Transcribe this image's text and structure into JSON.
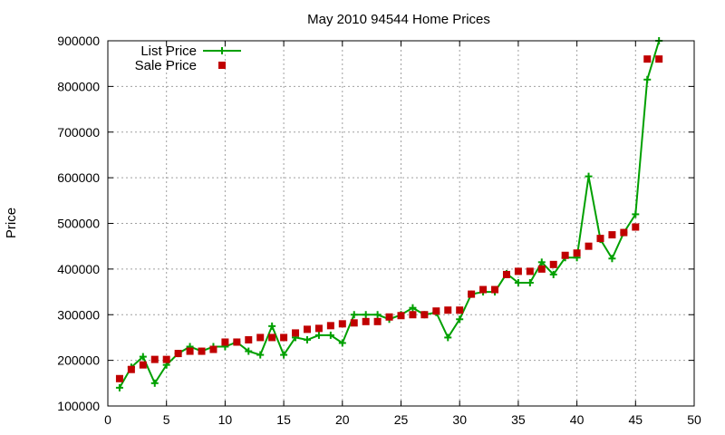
{
  "chart_data": {
    "type": "line",
    "title": "May 2010 94544 Home Prices",
    "xlabel": "",
    "ylabel": "Price",
    "xlim": [
      0,
      50
    ],
    "ylim": [
      100000,
      900000
    ],
    "xticks": [
      0,
      5,
      10,
      15,
      20,
      25,
      30,
      35,
      40,
      45,
      50
    ],
    "yticks": [
      100000,
      200000,
      300000,
      400000,
      500000,
      600000,
      700000,
      800000,
      900000
    ],
    "grid": true,
    "legend_position": "top-left",
    "series": [
      {
        "name": "List Price",
        "style": "line-with-plus-markers",
        "color": "#00a000",
        "x": [
          1,
          2,
          3,
          4,
          5,
          6,
          7,
          8,
          9,
          10,
          11,
          12,
          13,
          14,
          15,
          16,
          17,
          18,
          19,
          20,
          21,
          22,
          23,
          24,
          25,
          26,
          27,
          28,
          29,
          30,
          31,
          32,
          33,
          34,
          35,
          36,
          37,
          38,
          39,
          40,
          41,
          42,
          43,
          44,
          45,
          46,
          47
        ],
        "y": [
          140000,
          185000,
          208000,
          150000,
          190000,
          215000,
          230000,
          220000,
          230000,
          230000,
          240000,
          220000,
          212000,
          275000,
          212000,
          250000,
          245000,
          255000,
          255000,
          238000,
          300000,
          300000,
          300000,
          290000,
          300000,
          315000,
          300000,
          305000,
          250000,
          290000,
          345000,
          350000,
          350000,
          390000,
          370000,
          370000,
          415000,
          388000,
          425000,
          425000,
          603000,
          465000,
          423000,
          480000,
          520000,
          815000,
          900000
        ]
      },
      {
        "name": "Sale Price",
        "style": "square-markers",
        "color": "#c00000",
        "x": [
          1,
          2,
          3,
          4,
          5,
          6,
          7,
          8,
          9,
          10,
          11,
          12,
          13,
          14,
          15,
          16,
          17,
          18,
          19,
          20,
          21,
          22,
          23,
          24,
          25,
          26,
          27,
          28,
          29,
          30,
          31,
          32,
          33,
          34,
          35,
          36,
          37,
          38,
          39,
          40,
          41,
          42,
          43,
          44,
          45,
          46,
          47
        ],
        "y": [
          160000,
          180000,
          190000,
          202000,
          202000,
          215000,
          220000,
          220000,
          224000,
          240000,
          240000,
          245000,
          250000,
          250000,
          250000,
          260000,
          268000,
          270000,
          276000,
          280000,
          282000,
          285000,
          285000,
          295000,
          298000,
          300000,
          300000,
          308000,
          310000,
          310000,
          345000,
          355000,
          355000,
          388000,
          395000,
          395000,
          400000,
          410000,
          430000,
          435000,
          450000,
          467000,
          475000,
          480000,
          492000,
          860000,
          860000
        ]
      }
    ]
  }
}
